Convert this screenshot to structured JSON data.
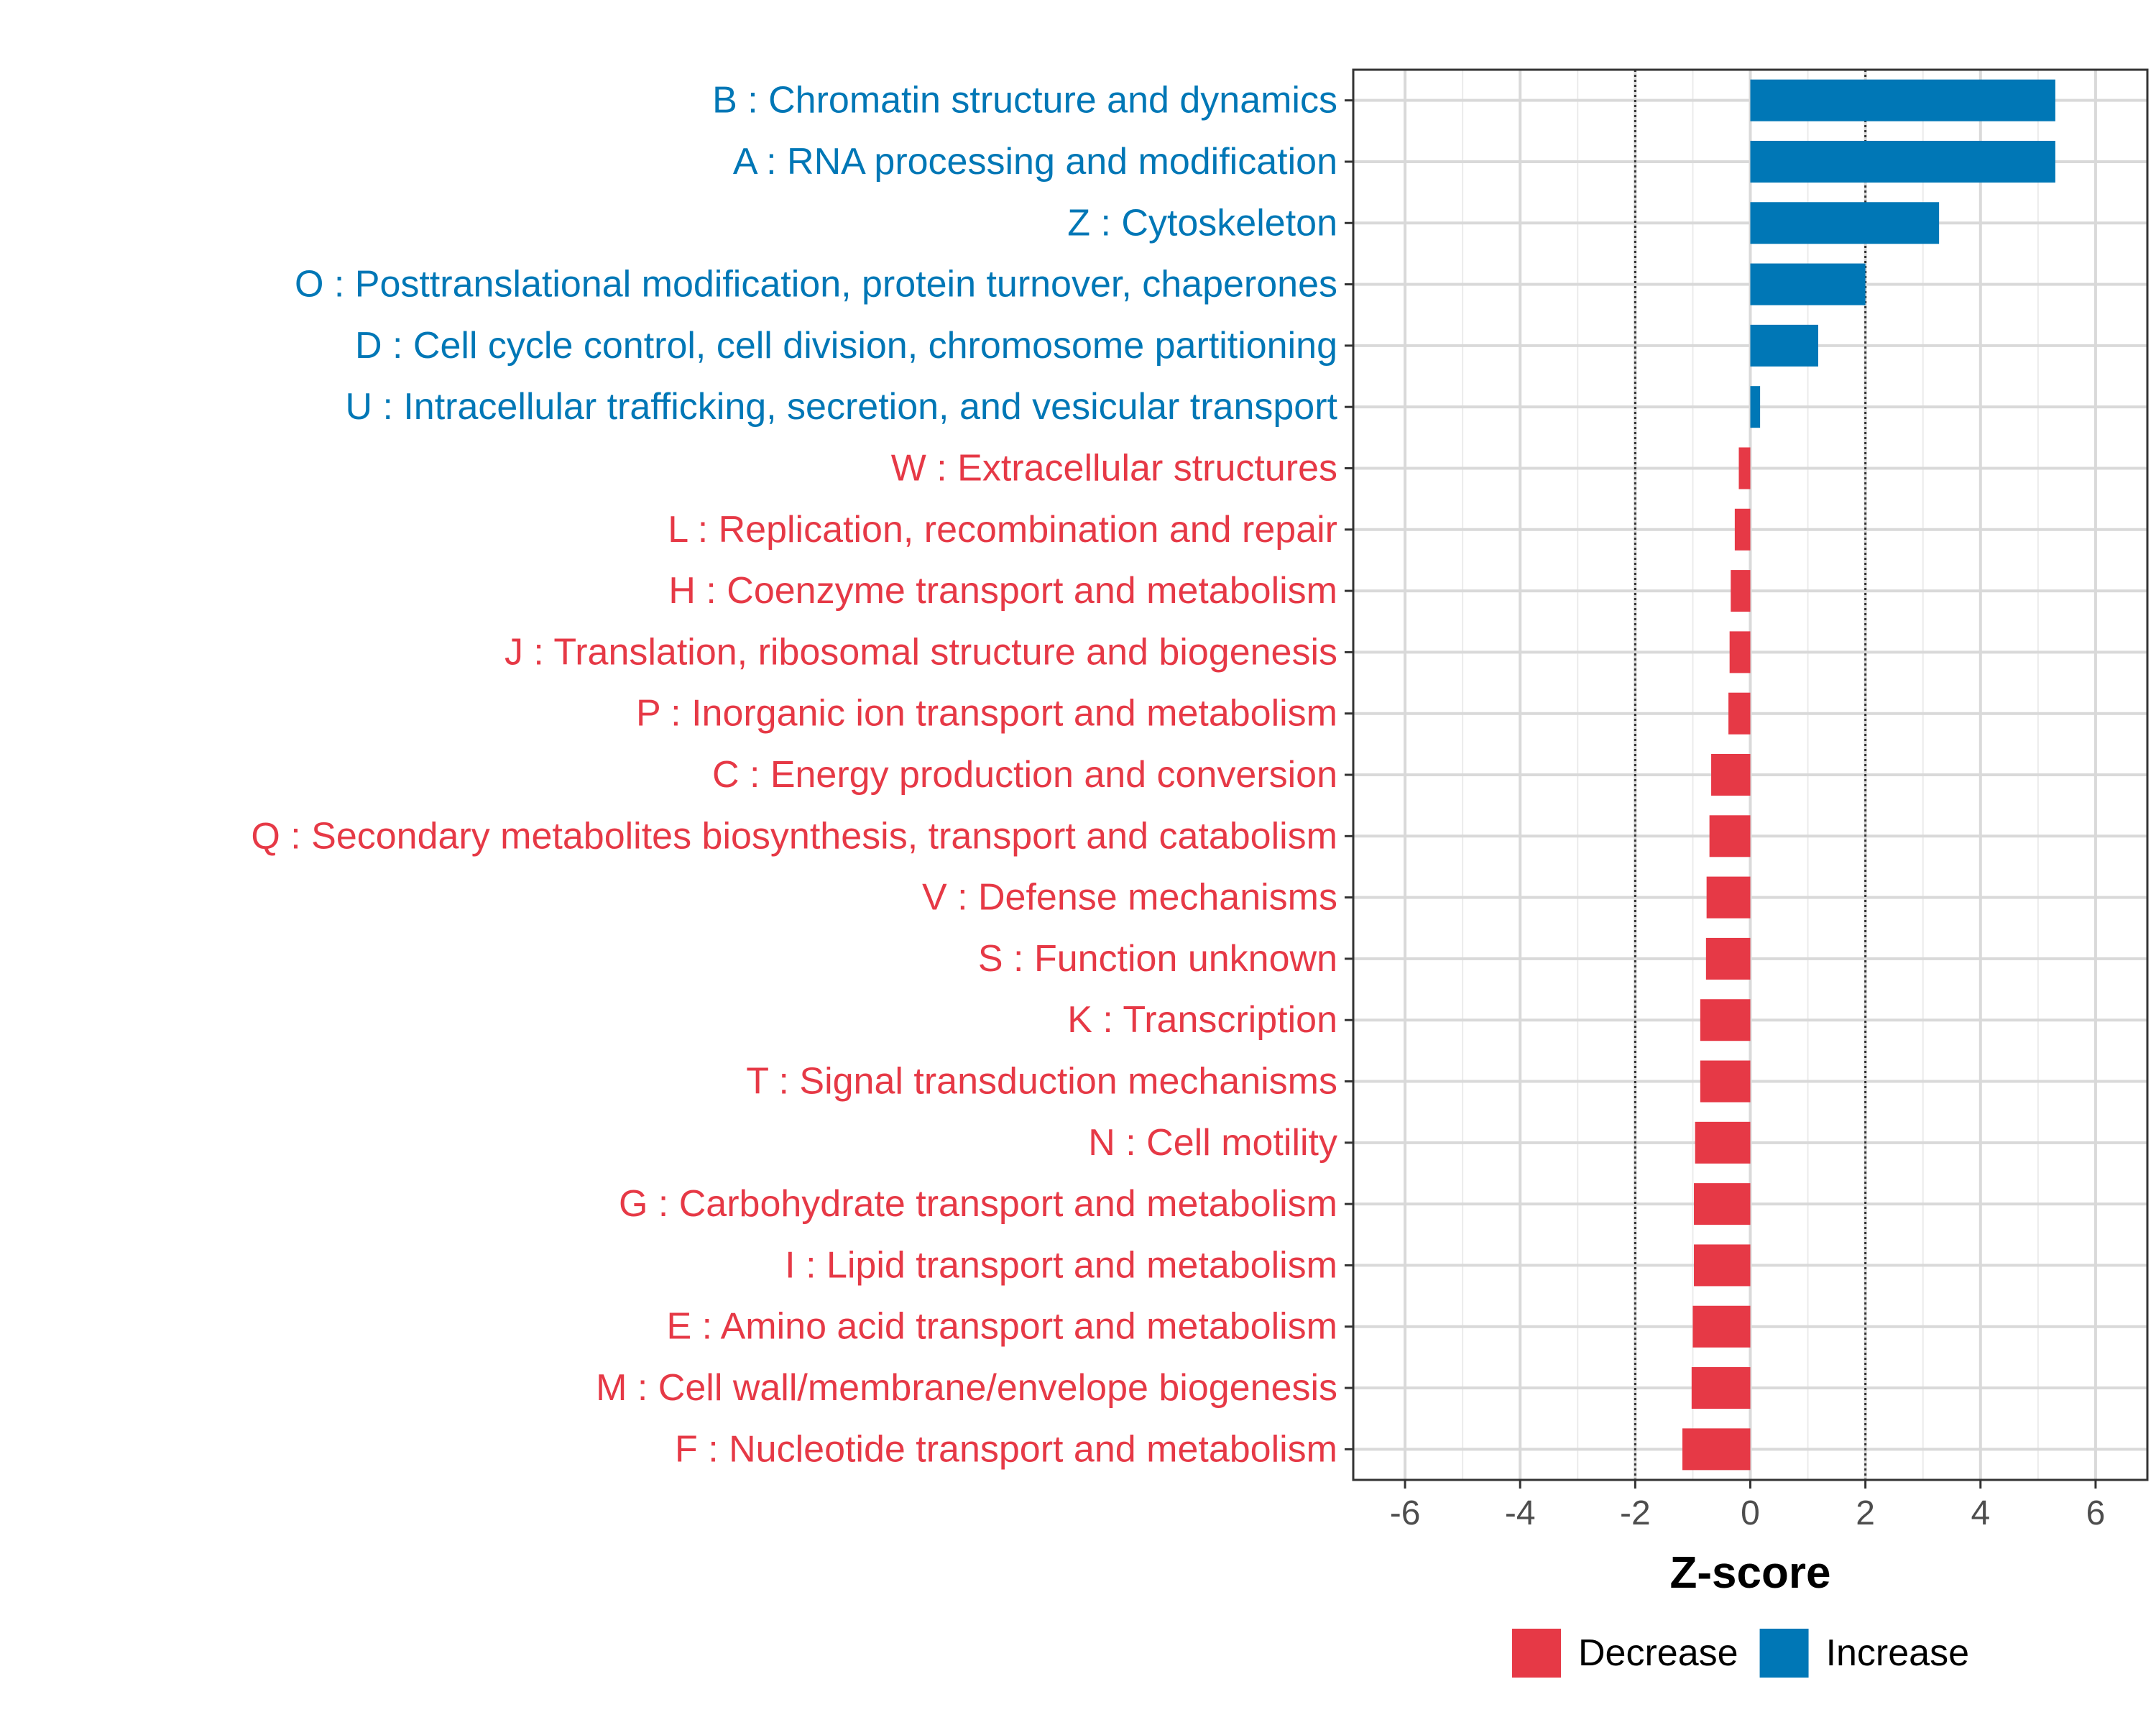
{
  "chart_data": {
    "type": "bar",
    "orientation": "horizontal",
    "xlabel": "Z-score",
    "xlim": [
      -6.9,
      6.9
    ],
    "xticks": [
      -6,
      -4,
      -2,
      0,
      2,
      4,
      6
    ],
    "reference_lines": [
      -2,
      2
    ],
    "grid": true,
    "legend_position": "bottom",
    "colors": {
      "Decrease": "#e63946",
      "Increase": "#0077b6"
    },
    "legend": [
      {
        "label": "Decrease",
        "color": "#e63946"
      },
      {
        "label": "Increase",
        "color": "#0077b6"
      }
    ],
    "categories": [
      {
        "label": "B : Chromatin structure and dynamics",
        "value": 5.3,
        "direction": "Increase"
      },
      {
        "label": "A : RNA processing and modification",
        "value": 5.3,
        "direction": "Increase"
      },
      {
        "label": "Z : Cytoskeleton",
        "value": 3.28,
        "direction": "Increase"
      },
      {
        "label": "O : Posttranslational modification, protein turnover, chaperones",
        "value": 2.0,
        "direction": "Increase"
      },
      {
        "label": "D : Cell cycle control, cell division, chromosome partitioning",
        "value": 1.18,
        "direction": "Increase"
      },
      {
        "label": "U : Intracellular trafficking, secretion, and vesicular transport",
        "value": 0.17,
        "direction": "Increase"
      },
      {
        "label": "W : Extracellular structures",
        "value": -0.2,
        "direction": "Decrease"
      },
      {
        "label": "L : Replication, recombination and repair",
        "value": -0.27,
        "direction": "Decrease"
      },
      {
        "label": "H : Coenzyme transport and metabolism",
        "value": -0.34,
        "direction": "Decrease"
      },
      {
        "label": "J : Translation, ribosomal structure and biogenesis",
        "value": -0.36,
        "direction": "Decrease"
      },
      {
        "label": "P : Inorganic ion transport and metabolism",
        "value": -0.38,
        "direction": "Decrease"
      },
      {
        "label": "C : Energy production and conversion",
        "value": -0.68,
        "direction": "Decrease"
      },
      {
        "label": "Q : Secondary metabolites biosynthesis, transport and catabolism",
        "value": -0.71,
        "direction": "Decrease"
      },
      {
        "label": "V : Defense mechanisms",
        "value": -0.76,
        "direction": "Decrease"
      },
      {
        "label": "S : Function unknown",
        "value": -0.77,
        "direction": "Decrease"
      },
      {
        "label": "K : Transcription",
        "value": -0.87,
        "direction": "Decrease"
      },
      {
        "label": "T : Signal transduction mechanisms",
        "value": -0.87,
        "direction": "Decrease"
      },
      {
        "label": "N : Cell motility",
        "value": -0.96,
        "direction": "Decrease"
      },
      {
        "label": "G : Carbohydrate transport and metabolism",
        "value": -0.98,
        "direction": "Decrease"
      },
      {
        "label": "I : Lipid transport and metabolism",
        "value": -0.98,
        "direction": "Decrease"
      },
      {
        "label": "E : Amino acid transport and metabolism",
        "value": -1.0,
        "direction": "Decrease"
      },
      {
        "label": "M : Cell wall/membrane/envelope biogenesis",
        "value": -1.02,
        "direction": "Decrease"
      },
      {
        "label": "F : Nucleotide transport and metabolism",
        "value": -1.18,
        "direction": "Decrease"
      }
    ]
  }
}
